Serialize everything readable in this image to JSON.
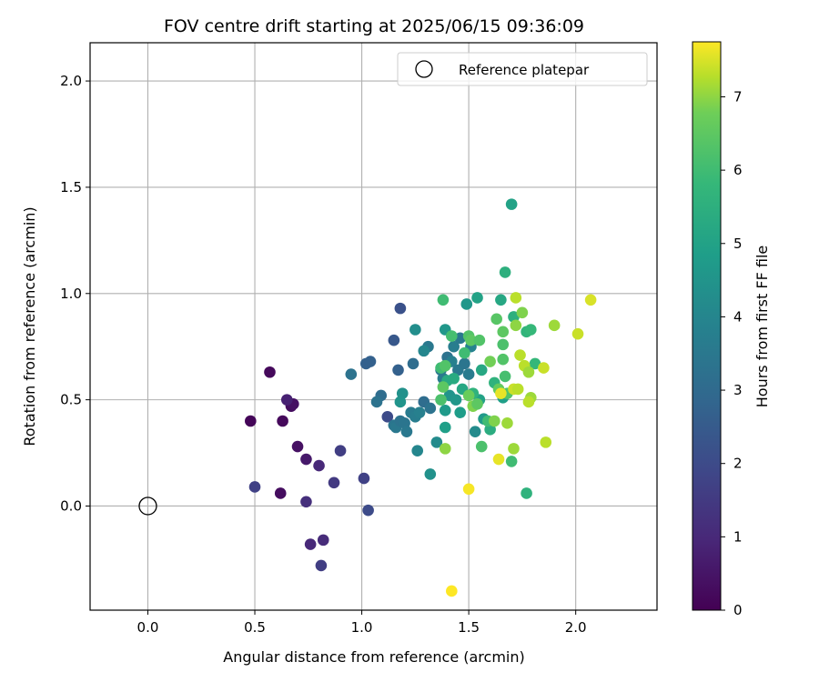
{
  "chart_data": {
    "type": "scatter",
    "title": "FOV centre drift starting at 2025/06/15 09:36:09",
    "xlabel": "Angular distance from reference (arcmin)",
    "ylabel": "Rotation from reference (arcmin)",
    "xlim": [
      -0.27,
      2.38
    ],
    "ylim": [
      -0.49,
      2.18
    ],
    "xticks": [
      0.0,
      0.5,
      1.0,
      1.5,
      2.0
    ],
    "yticks": [
      0.0,
      0.5,
      1.0,
      1.5,
      2.0
    ],
    "xtick_labels": [
      "0.0",
      "0.5",
      "1.0",
      "1.5",
      "2.0"
    ],
    "ytick_labels": [
      "0.0",
      "0.5",
      "1.0",
      "1.5",
      "2.0"
    ],
    "grid": true,
    "colormap": "viridis",
    "colorbar": {
      "label": "Hours from first FF file",
      "range": [
        0,
        7.75
      ],
      "ticks": [
        0,
        1,
        2,
        3,
        4,
        5,
        6,
        7
      ],
      "tick_labels": [
        "0",
        "1",
        "2",
        "3",
        "4",
        "5",
        "6",
        "7"
      ]
    },
    "legend": {
      "placement": "top-right",
      "entries": [
        {
          "label": "Reference platepar",
          "marker": "hollow-circle",
          "x": 0.0,
          "y": 0.0
        }
      ]
    },
    "points": [
      {
        "x": 0.48,
        "y": 0.4,
        "c": 0.1
      },
      {
        "x": 0.57,
        "y": 0.63,
        "c": 0.2
      },
      {
        "x": 0.63,
        "y": 0.4,
        "c": 0.2
      },
      {
        "x": 0.67,
        "y": 0.47,
        "c": 0.3
      },
      {
        "x": 0.68,
        "y": 0.48,
        "c": 0.4
      },
      {
        "x": 0.65,
        "y": 0.5,
        "c": 0.8
      },
      {
        "x": 0.62,
        "y": 0.06,
        "c": 0.3
      },
      {
        "x": 0.7,
        "y": 0.28,
        "c": 0.4
      },
      {
        "x": 0.74,
        "y": 0.22,
        "c": 0.6
      },
      {
        "x": 0.8,
        "y": 0.19,
        "c": 1.0
      },
      {
        "x": 0.74,
        "y": 0.02,
        "c": 1.2
      },
      {
        "x": 0.76,
        "y": -0.18,
        "c": 1.0
      },
      {
        "x": 0.82,
        "y": -0.16,
        "c": 1.1
      },
      {
        "x": 0.81,
        "y": -0.28,
        "c": 1.6
      },
      {
        "x": 0.5,
        "y": 0.09,
        "c": 1.7
      },
      {
        "x": 0.87,
        "y": 0.11,
        "c": 1.5
      },
      {
        "x": 0.9,
        "y": 0.26,
        "c": 1.6
      },
      {
        "x": 1.01,
        "y": 0.13,
        "c": 1.7
      },
      {
        "x": 1.03,
        "y": -0.02,
        "c": 2.0
      },
      {
        "x": 1.12,
        "y": 0.42,
        "c": 2.0
      },
      {
        "x": 1.18,
        "y": 0.93,
        "c": 2.2
      },
      {
        "x": 1.15,
        "y": 0.78,
        "c": 2.4
      },
      {
        "x": 1.17,
        "y": 0.64,
        "c": 2.7
      },
      {
        "x": 1.02,
        "y": 0.67,
        "c": 2.7
      },
      {
        "x": 1.04,
        "y": 0.68,
        "c": 2.7
      },
      {
        "x": 0.95,
        "y": 0.62,
        "c": 3.3
      },
      {
        "x": 1.09,
        "y": 0.52,
        "c": 3.1
      },
      {
        "x": 1.07,
        "y": 0.49,
        "c": 3.3
      },
      {
        "x": 1.15,
        "y": 0.38,
        "c": 3.4
      },
      {
        "x": 1.16,
        "y": 0.37,
        "c": 3.5
      },
      {
        "x": 1.18,
        "y": 0.4,
        "c": 3.3
      },
      {
        "x": 1.2,
        "y": 0.39,
        "c": 3.4
      },
      {
        "x": 1.21,
        "y": 0.35,
        "c": 3.5
      },
      {
        "x": 1.23,
        "y": 0.44,
        "c": 3.6
      },
      {
        "x": 1.25,
        "y": 0.42,
        "c": 3.7
      },
      {
        "x": 1.27,
        "y": 0.44,
        "c": 3.8
      },
      {
        "x": 1.24,
        "y": 0.67,
        "c": 3.1
      },
      {
        "x": 1.29,
        "y": 0.49,
        "c": 3.1
      },
      {
        "x": 1.32,
        "y": 0.46,
        "c": 3.3
      },
      {
        "x": 1.31,
        "y": 0.75,
        "c": 3.5
      },
      {
        "x": 1.29,
        "y": 0.73,
        "c": 4.0
      },
      {
        "x": 1.25,
        "y": 0.83,
        "c": 4.3
      },
      {
        "x": 1.19,
        "y": 0.53,
        "c": 4.4
      },
      {
        "x": 1.18,
        "y": 0.49,
        "c": 4.5
      },
      {
        "x": 1.26,
        "y": 0.26,
        "c": 4.0
      },
      {
        "x": 1.32,
        "y": 0.15,
        "c": 4.4
      },
      {
        "x": 1.35,
        "y": 0.3,
        "c": 4.2
      },
      {
        "x": 1.37,
        "y": 0.64,
        "c": 3.5
      },
      {
        "x": 1.38,
        "y": 0.6,
        "c": 3.6
      },
      {
        "x": 1.4,
        "y": 0.7,
        "c": 3.3
      },
      {
        "x": 1.42,
        "y": 0.68,
        "c": 3.8
      },
      {
        "x": 1.43,
        "y": 0.75,
        "c": 3.7
      },
      {
        "x": 1.45,
        "y": 0.64,
        "c": 3.5
      },
      {
        "x": 1.46,
        "y": 0.79,
        "c": 3.5
      },
      {
        "x": 1.48,
        "y": 0.67,
        "c": 3.4
      },
      {
        "x": 1.5,
        "y": 0.62,
        "c": 3.6
      },
      {
        "x": 1.51,
        "y": 0.75,
        "c": 3.9
      },
      {
        "x": 1.39,
        "y": 0.83,
        "c": 4.6
      },
      {
        "x": 1.39,
        "y": 0.45,
        "c": 4.7
      },
      {
        "x": 1.39,
        "y": 0.37,
        "c": 4.9
      },
      {
        "x": 1.41,
        "y": 0.52,
        "c": 4.5
      },
      {
        "x": 1.44,
        "y": 0.5,
        "c": 4.6
      },
      {
        "x": 1.46,
        "y": 0.44,
        "c": 4.8
      },
      {
        "x": 1.53,
        "y": 0.35,
        "c": 4.2
      },
      {
        "x": 1.57,
        "y": 0.41,
        "c": 4.7
      },
      {
        "x": 1.55,
        "y": 0.5,
        "c": 5.0
      },
      {
        "x": 1.54,
        "y": 0.98,
        "c": 5.0
      },
      {
        "x": 1.49,
        "y": 0.95,
        "c": 4.6
      },
      {
        "x": 1.4,
        "y": 0.59,
        "c": 5.3
      },
      {
        "x": 1.43,
        "y": 0.6,
        "c": 5.3
      },
      {
        "x": 1.47,
        "y": 0.55,
        "c": 5.2
      },
      {
        "x": 1.52,
        "y": 0.53,
        "c": 5.6
      },
      {
        "x": 1.56,
        "y": 0.64,
        "c": 5.2
      },
      {
        "x": 1.6,
        "y": 0.36,
        "c": 5.4
      },
      {
        "x": 1.62,
        "y": 0.58,
        "c": 5.6
      },
      {
        "x": 1.7,
        "y": 1.42,
        "c": 5.0
      },
      {
        "x": 1.67,
        "y": 1.1,
        "c": 5.5
      },
      {
        "x": 1.65,
        "y": 0.97,
        "c": 5.2
      },
      {
        "x": 1.71,
        "y": 0.89,
        "c": 5.5
      },
      {
        "x": 1.66,
        "y": 0.51,
        "c": 4.9
      },
      {
        "x": 1.77,
        "y": 0.06,
        "c": 5.6
      },
      {
        "x": 1.7,
        "y": 0.21,
        "c": 6.0
      },
      {
        "x": 1.77,
        "y": 0.82,
        "c": 5.7
      },
      {
        "x": 1.79,
        "y": 0.83,
        "c": 5.8
      },
      {
        "x": 1.81,
        "y": 0.67,
        "c": 5.8
      },
      {
        "x": 1.38,
        "y": 0.97,
        "c": 6.0
      },
      {
        "x": 1.42,
        "y": 0.8,
        "c": 6.1
      },
      {
        "x": 1.48,
        "y": 0.72,
        "c": 6.0
      },
      {
        "x": 1.5,
        "y": 0.8,
        "c": 6.3
      },
      {
        "x": 1.51,
        "y": 0.78,
        "c": 6.5
      },
      {
        "x": 1.55,
        "y": 0.78,
        "c": 6.3
      },
      {
        "x": 1.37,
        "y": 0.65,
        "c": 6.0
      },
      {
        "x": 1.39,
        "y": 0.66,
        "c": 6.3
      },
      {
        "x": 1.38,
        "y": 0.56,
        "c": 6.5
      },
      {
        "x": 1.37,
        "y": 0.5,
        "c": 6.2
      },
      {
        "x": 1.5,
        "y": 0.52,
        "c": 6.7
      },
      {
        "x": 1.52,
        "y": 0.47,
        "c": 6.9
      },
      {
        "x": 1.54,
        "y": 0.48,
        "c": 6.5
      },
      {
        "x": 1.56,
        "y": 0.28,
        "c": 6.2
      },
      {
        "x": 1.59,
        "y": 0.4,
        "c": 6.0
      },
      {
        "x": 1.6,
        "y": 0.68,
        "c": 6.8
      },
      {
        "x": 1.63,
        "y": 0.88,
        "c": 6.4
      },
      {
        "x": 1.66,
        "y": 0.82,
        "c": 6.5
      },
      {
        "x": 1.66,
        "y": 0.69,
        "c": 6.3
      },
      {
        "x": 1.66,
        "y": 0.76,
        "c": 6.2
      },
      {
        "x": 1.67,
        "y": 0.61,
        "c": 6.1
      },
      {
        "x": 1.68,
        "y": 0.53,
        "c": 6.3
      },
      {
        "x": 1.64,
        "y": 0.55,
        "c": 6.6
      },
      {
        "x": 1.39,
        "y": 0.27,
        "c": 7.0
      },
      {
        "x": 1.62,
        "y": 0.4,
        "c": 6.9
      },
      {
        "x": 1.68,
        "y": 0.39,
        "c": 7.1
      },
      {
        "x": 1.71,
        "y": 0.27,
        "c": 7.1
      },
      {
        "x": 1.72,
        "y": 0.85,
        "c": 7.0
      },
      {
        "x": 1.75,
        "y": 0.91,
        "c": 6.9
      },
      {
        "x": 1.72,
        "y": 0.98,
        "c": 7.3
      },
      {
        "x": 1.74,
        "y": 0.71,
        "c": 7.3
      },
      {
        "x": 1.76,
        "y": 0.66,
        "c": 7.3
      },
      {
        "x": 1.78,
        "y": 0.63,
        "c": 7.1
      },
      {
        "x": 1.79,
        "y": 0.51,
        "c": 7.1
      },
      {
        "x": 1.78,
        "y": 0.49,
        "c": 7.3
      },
      {
        "x": 1.71,
        "y": 0.55,
        "c": 7.4
      },
      {
        "x": 1.73,
        "y": 0.55,
        "c": 7.3
      },
      {
        "x": 1.65,
        "y": 0.53,
        "c": 7.6
      },
      {
        "x": 1.64,
        "y": 0.22,
        "c": 7.6
      },
      {
        "x": 1.85,
        "y": 0.65,
        "c": 7.4
      },
      {
        "x": 1.86,
        "y": 0.3,
        "c": 7.3
      },
      {
        "x": 1.9,
        "y": 0.85,
        "c": 7.1
      },
      {
        "x": 2.01,
        "y": 0.81,
        "c": 7.4
      },
      {
        "x": 2.07,
        "y": 0.97,
        "c": 7.5
      },
      {
        "x": 1.5,
        "y": 0.08,
        "c": 7.7
      },
      {
        "x": 1.42,
        "y": -0.4,
        "c": 7.8
      }
    ]
  }
}
